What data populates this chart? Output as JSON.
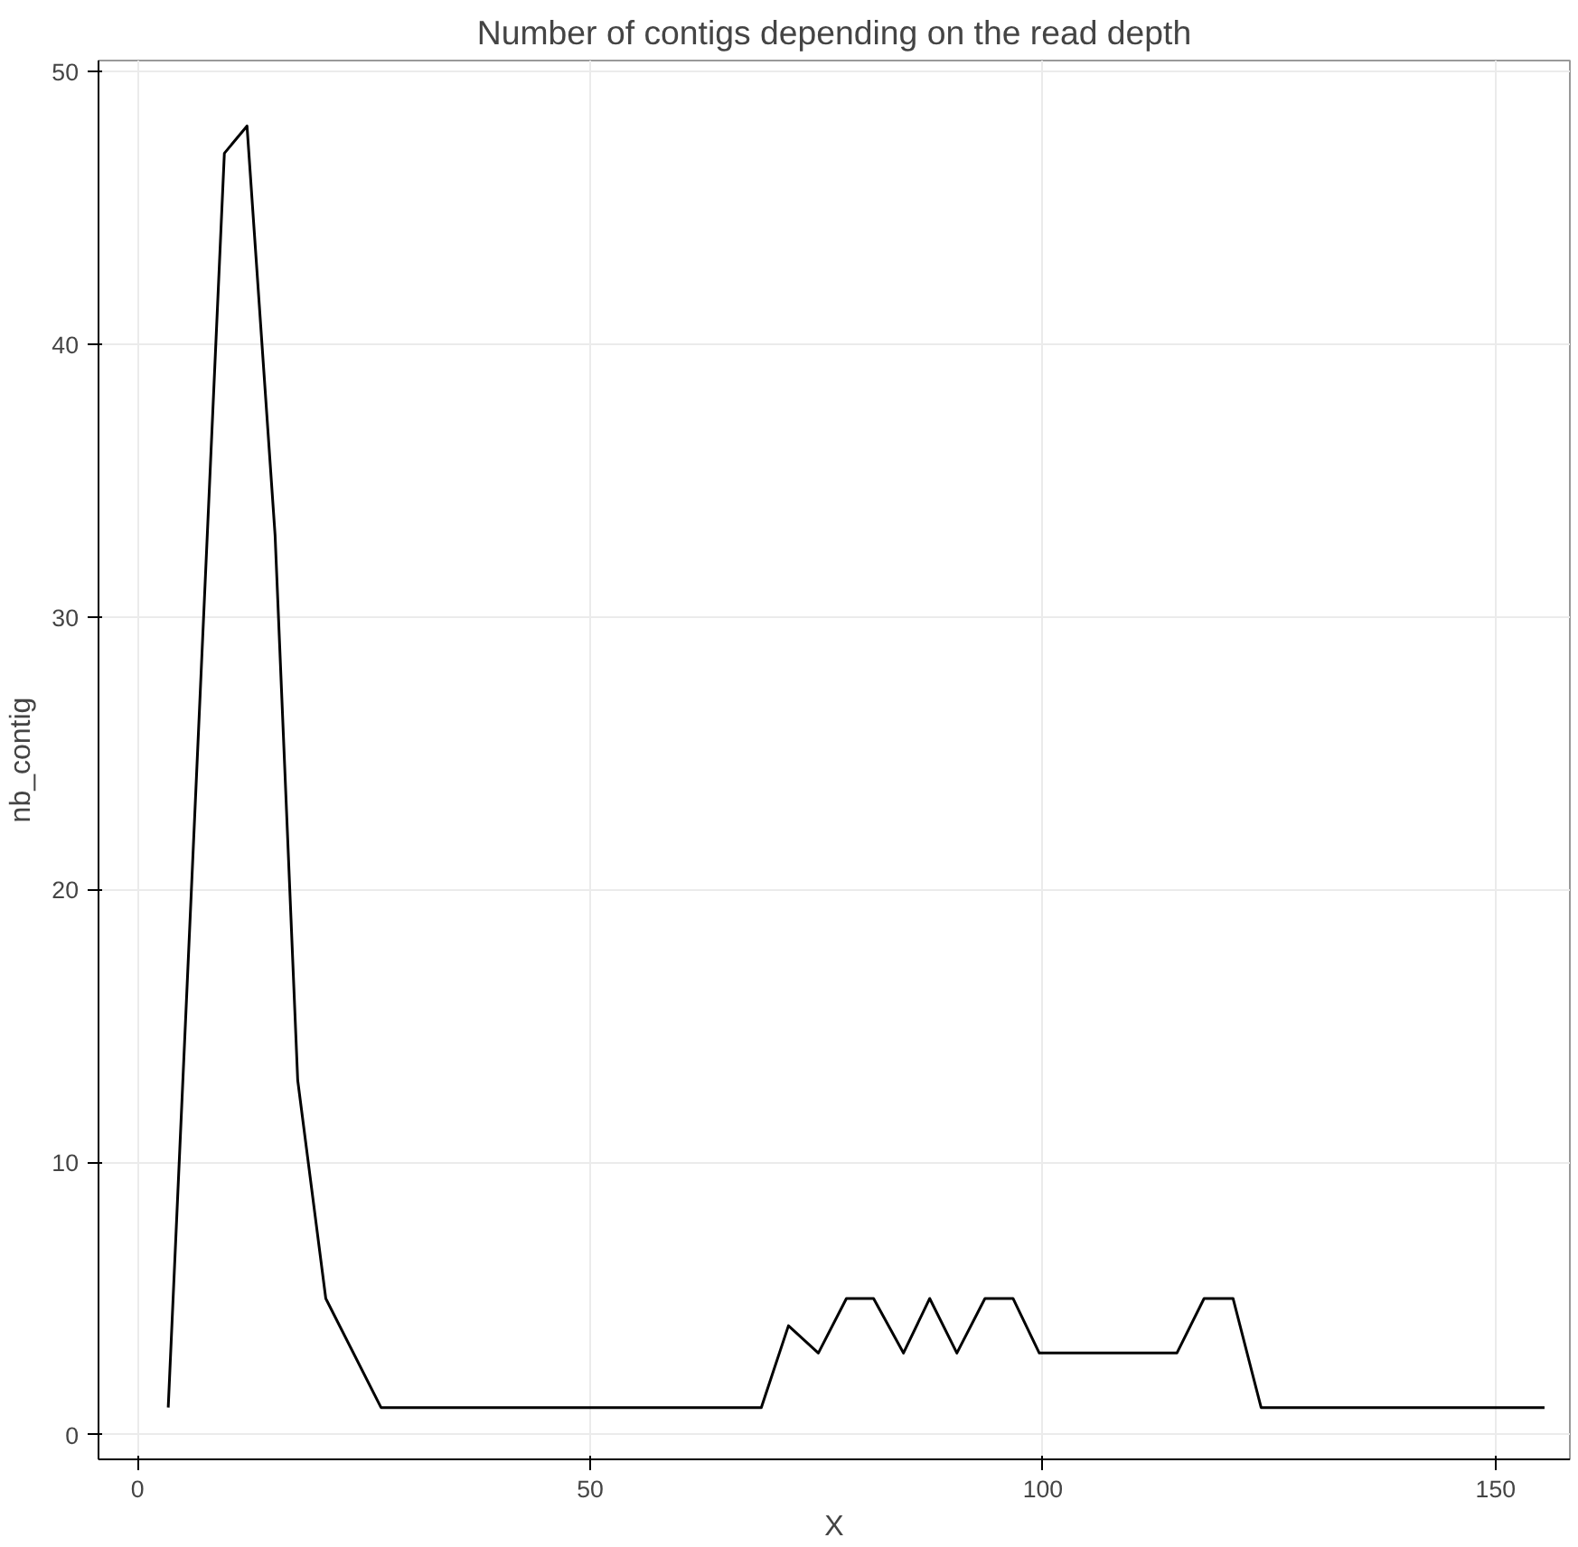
{
  "chart_data": {
    "type": "line",
    "title": "Number of contigs depending on the read depth",
    "xlabel": "X",
    "ylabel": "nb_contig",
    "x": [
      3.4,
      9.6,
      12.1,
      15.2,
      17.7,
      20.8,
      26.9,
      68.9,
      71.9,
      75.2,
      78.3,
      81.3,
      84.6,
      87.5,
      90.5,
      93.6,
      96.7,
      99.6,
      114.8,
      117.8,
      121.0,
      124.1,
      155.4
    ],
    "series": [
      {
        "color": "#000000",
        "values": [
          1,
          47,
          48,
          33,
          13,
          5,
          1,
          1,
          4,
          3,
          5,
          5,
          3,
          5,
          3,
          5,
          5,
          3,
          3,
          5,
          5,
          1,
          1
        ]
      }
    ],
    "xlim": [
      -4.3,
      158.2
    ],
    "ylim": [
      -0.9,
      50.4
    ],
    "xticks": [
      0,
      50,
      100,
      150
    ],
    "yticks": [
      0,
      10,
      20,
      30,
      40,
      50
    ],
    "grid": true,
    "marker": "none",
    "line_style": "solid"
  }
}
